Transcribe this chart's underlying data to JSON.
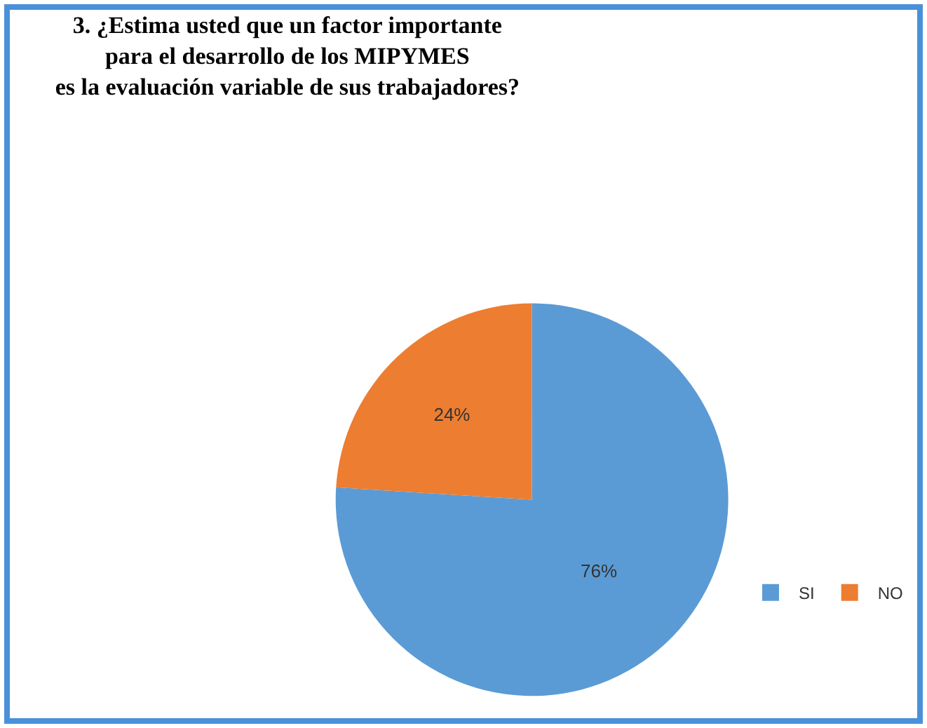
{
  "chart_data": {
    "type": "pie",
    "title": "3. ¿Estima usted que un factor importante\npara el desarrollo de los MIPYMES\nes la evaluación variable de sus trabajadores?",
    "categories": [
      "SI",
      "NO"
    ],
    "values": [
      76,
      24
    ],
    "colors": [
      "#5b9bd5",
      "#ed7d31"
    ],
    "value_labels": [
      "76%",
      "24%"
    ],
    "legend": "bottom right"
  }
}
